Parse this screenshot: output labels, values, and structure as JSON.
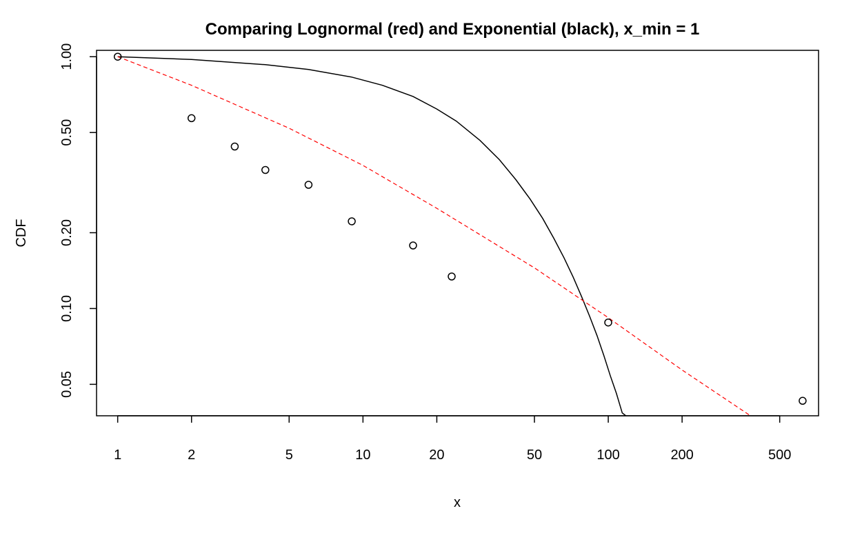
{
  "chart_data": {
    "type": "scatter",
    "title": "Comparing Lognormal (red) and Exponential (black), x_min = 1",
    "xlabel": "x",
    "ylabel": "CDF",
    "x_scale": "log",
    "y_scale": "log",
    "xlim": [
      0.82,
      720
    ],
    "ylim": [
      0.0375,
      1.06
    ],
    "grid": false,
    "x_ticks": [
      {
        "value": 1,
        "label": "1"
      },
      {
        "value": 2,
        "label": "2"
      },
      {
        "value": 5,
        "label": "5"
      },
      {
        "value": 10,
        "label": "10"
      },
      {
        "value": 20,
        "label": "20"
      },
      {
        "value": 50,
        "label": "50"
      },
      {
        "value": 100,
        "label": "100"
      },
      {
        "value": 200,
        "label": "200"
      },
      {
        "value": 500,
        "label": "500"
      }
    ],
    "y_ticks": [
      {
        "value": 0.05,
        "label": "0.05"
      },
      {
        "value": 0.1,
        "label": "0.10"
      },
      {
        "value": 0.2,
        "label": "0.20"
      },
      {
        "value": 0.5,
        "label": "0.50"
      },
      {
        "value": 1.0,
        "label": "1.00"
      }
    ],
    "points": [
      {
        "x": 1,
        "y": 1.0
      },
      {
        "x": 2,
        "y": 0.57
      },
      {
        "x": 3,
        "y": 0.44
      },
      {
        "x": 4,
        "y": 0.355
      },
      {
        "x": 6,
        "y": 0.31
      },
      {
        "x": 9,
        "y": 0.222
      },
      {
        "x": 16,
        "y": 0.178
      },
      {
        "x": 23,
        "y": 0.134
      },
      {
        "x": 100,
        "y": 0.088
      },
      {
        "x": 620,
        "y": 0.043
      }
    ],
    "series": [
      {
        "color": "#000000",
        "style": "solid",
        "x": [
          1,
          2,
          4,
          6,
          9,
          12,
          16,
          20,
          24,
          30,
          36,
          42,
          48,
          54,
          60,
          66,
          72,
          78,
          84,
          90,
          96,
          102,
          108,
          114,
          118
        ],
        "y": [
          1.0,
          0.975,
          0.93,
          0.89,
          0.83,
          0.77,
          0.695,
          0.62,
          0.555,
          0.465,
          0.39,
          0.325,
          0.272,
          0.228,
          0.19,
          0.159,
          0.133,
          0.111,
          0.093,
          0.078,
          0.065,
          0.054,
          0.046,
          0.0385,
          0.0375
        ]
      },
      {
        "color": "#ff0000",
        "style": "dashed",
        "x": [
          1,
          2,
          5,
          10,
          20,
          50,
          100,
          200,
          380
        ],
        "y": [
          1.0,
          0.77,
          0.52,
          0.37,
          0.25,
          0.145,
          0.092,
          0.057,
          0.0375
        ]
      }
    ]
  }
}
